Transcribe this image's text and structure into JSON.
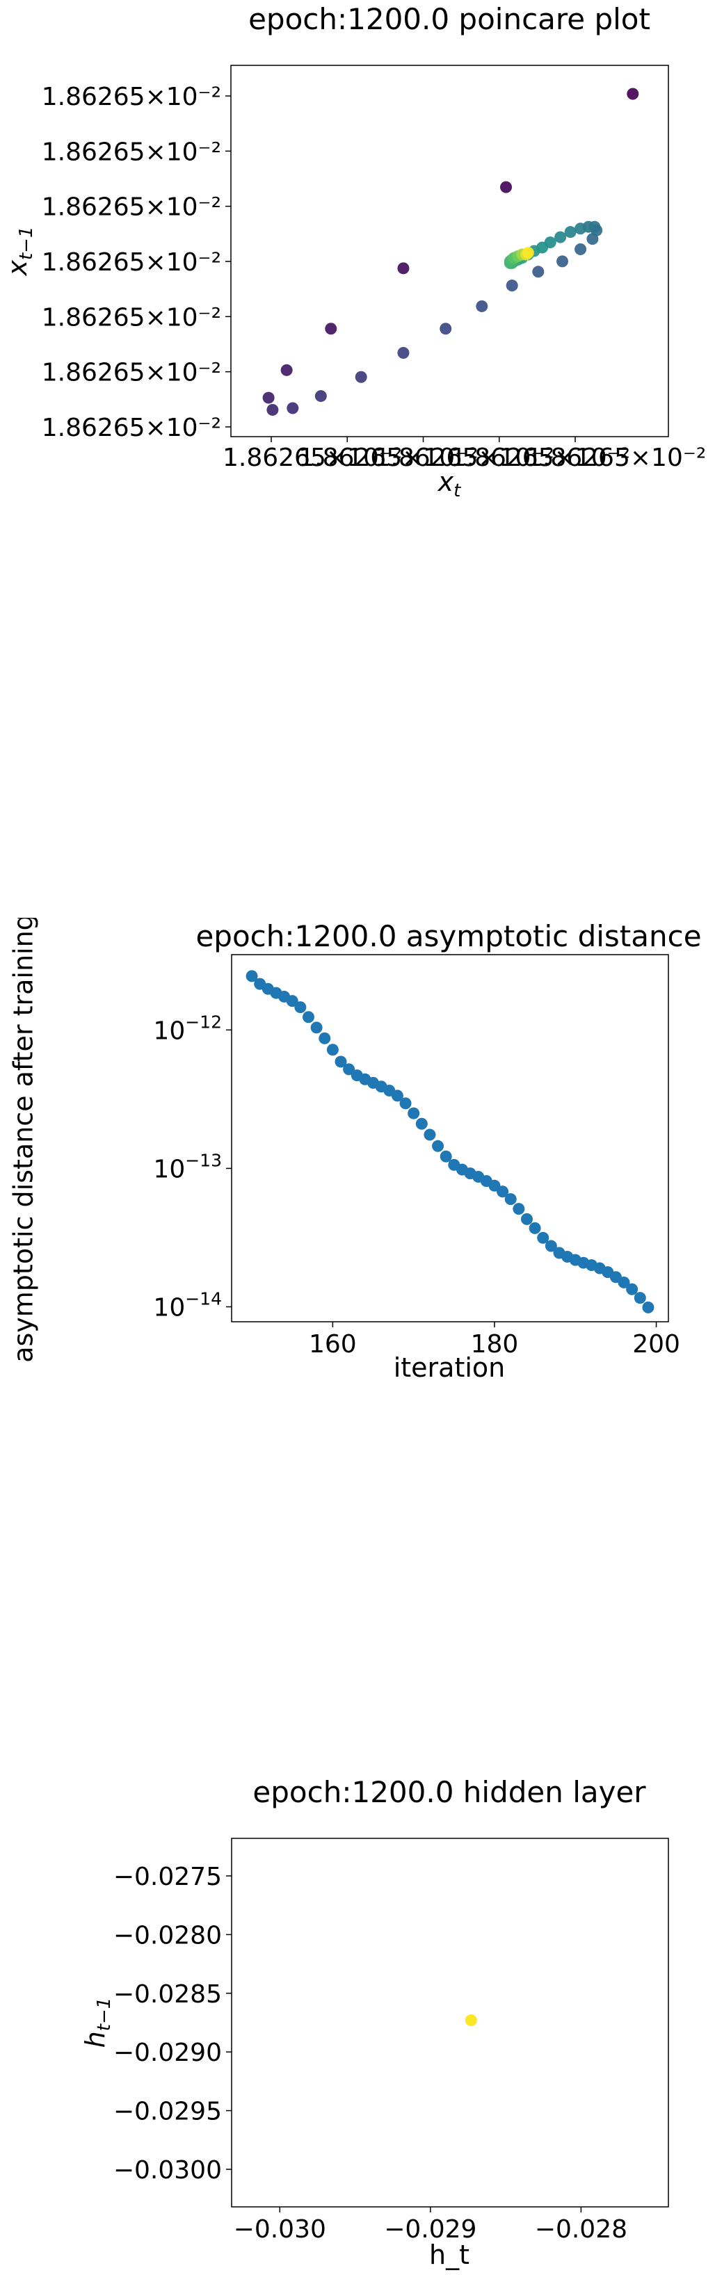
{
  "chart_data": [
    {
      "type": "scatter",
      "title": "epoch:1200.0 poincare plot",
      "xlabel": "x_t",
      "ylabel": "x_{t-1}",
      "x_tick_labels": [
        "1.86265",
        "1.86265",
        "1.86265",
        "1.86265",
        "1.86265"
      ],
      "x_tick_suffix": "×10⁻²",
      "y_tick_labels": [
        "1.86265×10⁻²",
        "1.86265×10⁻²",
        "1.86265×10⁻²",
        "1.86265×10⁻²",
        "1.86265×10⁻²",
        "1.86265×10⁻²",
        "1.86265×10⁻²"
      ],
      "xlim": [
        0.0,
        1.0
      ],
      "ylim": [
        0.0,
        1.0
      ],
      "colormap": "viridis",
      "points": [
        {
          "x": 0.955,
          "y": 0.955,
          "c": 0.0
        },
        {
          "x": 0.64,
          "y": 0.685,
          "c": 0.02
        },
        {
          "x": 0.385,
          "y": 0.45,
          "c": 0.04
        },
        {
          "x": 0.205,
          "y": 0.275,
          "c": 0.06
        },
        {
          "x": 0.095,
          "y": 0.155,
          "c": 0.08
        },
        {
          "x": 0.05,
          "y": 0.075,
          "c": 0.1
        },
        {
          "x": 0.06,
          "y": 0.04,
          "c": 0.12
        },
        {
          "x": 0.11,
          "y": 0.045,
          "c": 0.14
        },
        {
          "x": 0.18,
          "y": 0.08,
          "c": 0.16
        },
        {
          "x": 0.28,
          "y": 0.135,
          "c": 0.18
        },
        {
          "x": 0.385,
          "y": 0.205,
          "c": 0.2
        },
        {
          "x": 0.49,
          "y": 0.275,
          "c": 0.22
        },
        {
          "x": 0.58,
          "y": 0.34,
          "c": 0.24
        },
        {
          "x": 0.655,
          "y": 0.4,
          "c": 0.26
        },
        {
          "x": 0.72,
          "y": 0.44,
          "c": 0.28
        },
        {
          "x": 0.78,
          "y": 0.47,
          "c": 0.3
        },
        {
          "x": 0.825,
          "y": 0.505,
          "c": 0.32
        },
        {
          "x": 0.855,
          "y": 0.535,
          "c": 0.34
        },
        {
          "x": 0.865,
          "y": 0.56,
          "c": 0.36
        },
        {
          "x": 0.86,
          "y": 0.57,
          "c": 0.38
        },
        {
          "x": 0.845,
          "y": 0.57,
          "c": 0.4
        },
        {
          "x": 0.825,
          "y": 0.565,
          "c": 0.42
        },
        {
          "x": 0.8,
          "y": 0.555,
          "c": 0.44
        },
        {
          "x": 0.775,
          "y": 0.54,
          "c": 0.46
        },
        {
          "x": 0.75,
          "y": 0.525,
          "c": 0.48
        },
        {
          "x": 0.73,
          "y": 0.51,
          "c": 0.5
        },
        {
          "x": 0.71,
          "y": 0.5,
          "c": 0.52
        },
        {
          "x": 0.695,
          "y": 0.49,
          "c": 0.54
        },
        {
          "x": 0.68,
          "y": 0.48,
          "c": 0.56
        },
        {
          "x": 0.67,
          "y": 0.475,
          "c": 0.58
        },
        {
          "x": 0.66,
          "y": 0.47,
          "c": 0.6
        },
        {
          "x": 0.655,
          "y": 0.465,
          "c": 0.62
        },
        {
          "x": 0.65,
          "y": 0.465,
          "c": 0.64
        },
        {
          "x": 0.65,
          "y": 0.47,
          "c": 0.66
        },
        {
          "x": 0.655,
          "y": 0.475,
          "c": 0.68
        },
        {
          "x": 0.66,
          "y": 0.48,
          "c": 0.72
        },
        {
          "x": 0.67,
          "y": 0.485,
          "c": 0.78
        },
        {
          "x": 0.68,
          "y": 0.49,
          "c": 0.86
        },
        {
          "x": 0.69,
          "y": 0.49,
          "c": 0.95
        },
        {
          "x": 0.695,
          "y": 0.495,
          "c": 1.0
        }
      ]
    },
    {
      "type": "scatter",
      "title": "epoch:1200.0 asymptotic distance",
      "xlabel": "iteration",
      "ylabel": "asymptotic distance after training",
      "y_scale": "log",
      "xlim": [
        147.5,
        201.5
      ],
      "ylim": [
        7.8e-15,
        3.5e-12
      ],
      "x_ticks": [
        160,
        180,
        200
      ],
      "y_ticks": [
        1e-12,
        1e-13,
        1e-14
      ],
      "x_tick_labels": [
        "160",
        "180",
        "200"
      ],
      "y_tick_base": "10",
      "y_tick_exponents": [
        "−12",
        "−13",
        "−14"
      ],
      "color": "#1f77b4",
      "x": [
        150,
        151,
        152,
        153,
        154,
        155,
        156,
        157,
        158,
        159,
        160,
        161,
        162,
        163,
        164,
        165,
        166,
        167,
        168,
        169,
        170,
        171,
        172,
        173,
        174,
        175,
        176,
        177,
        178,
        179,
        180,
        181,
        182,
        183,
        184,
        185,
        186,
        187,
        188,
        189,
        190,
        191,
        192,
        193,
        194,
        195,
        196,
        197,
        198,
        199
      ],
      "y": [
        2.45e-12,
        2.15e-12,
        1.98e-12,
        1.85e-12,
        1.74e-12,
        1.62e-12,
        1.46e-12,
        1.24e-12,
        1.04e-12,
        8.7e-13,
        7.2e-13,
        5.9e-13,
        5.2e-13,
        4.7e-13,
        4.4e-13,
        4.15e-13,
        3.9e-13,
        3.65e-13,
        3.35e-13,
        2.95e-13,
        2.5e-13,
        2.1e-13,
        1.75e-13,
        1.45e-13,
        1.22e-13,
        1.06e-13,
        9.8e-14,
        9.2e-14,
        8.7e-14,
        8.1e-14,
        7.5e-14,
        6.8e-14,
        6e-14,
        5.1e-14,
        4.3e-14,
        3.7e-14,
        3.15e-14,
        2.75e-14,
        2.45e-14,
        2.3e-14,
        2.18e-14,
        2.08e-14,
        2e-14,
        1.9e-14,
        1.78e-14,
        1.64e-14,
        1.5e-14,
        1.34e-14,
        1.16e-14,
        9.9e-15
      ]
    },
    {
      "type": "scatter",
      "title": "epoch:1200.0 hidden layer",
      "xlabel": "h_t",
      "ylabel": "h_{t-1}",
      "xlim": [
        -0.03032,
        -0.02742
      ],
      "ylim": [
        -0.03032,
        -0.02718
      ],
      "x_ticks": [
        -0.03,
        -0.029,
        -0.028
      ],
      "y_ticks": [
        -0.0275,
        -0.028,
        -0.0285,
        -0.029,
        -0.0295,
        -0.03
      ],
      "x_tick_labels": [
        "−0.030",
        "−0.029",
        "−0.028"
      ],
      "y_tick_labels": [
        "−0.0275",
        "−0.0280",
        "−0.0285",
        "−0.0290",
        "−0.0295",
        "−0.0300"
      ],
      "color": "#fde725",
      "x": [
        -0.02873
      ],
      "y": [
        -0.02873
      ]
    }
  ]
}
